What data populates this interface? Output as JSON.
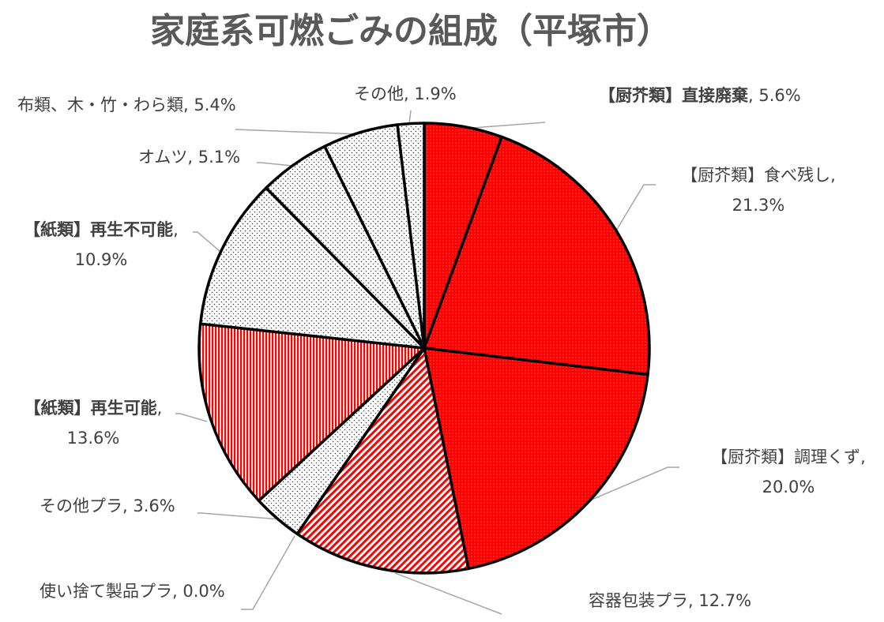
{
  "chart_data": {
    "type": "pie",
    "title": "家庭系可燃ごみの組成（平塚市）",
    "slices": [
      {
        "label_parts": [
          {
            "text": "【厨芥類】直接廃棄",
            "bold": true
          },
          {
            "text": ", 5.6%",
            "bold": false
          }
        ],
        "value": 5.6,
        "pattern": "red-dot"
      },
      {
        "label_parts": [
          {
            "text": "【厨芥類】食べ残し,",
            "bold": false
          }
        ],
        "label_parts_2": [
          {
            "text": "21.3%",
            "bold": false
          }
        ],
        "value": 21.3,
        "pattern": "red-dot"
      },
      {
        "label_parts": [
          {
            "text": "【厨芥類】調理くず,",
            "bold": false
          }
        ],
        "label_parts_2": [
          {
            "text": "20.0%",
            "bold": false
          }
        ],
        "value": 20.0,
        "pattern": "red-dot"
      },
      {
        "label_parts": [
          {
            "text": "容器包装プラ, 12.7%",
            "bold": false
          }
        ],
        "value": 12.7,
        "pattern": "red-diag"
      },
      {
        "label_parts": [
          {
            "text": "使い捨て製品プラ, 0.0%",
            "bold": false
          }
        ],
        "value": 0.0,
        "pattern": "red-diag"
      },
      {
        "label_parts": [
          {
            "text": "その他プラ, 3.6%",
            "bold": false
          }
        ],
        "value": 3.6,
        "pattern": "gray-dot"
      },
      {
        "label_parts": [
          {
            "text": "【紙類】再生可能",
            "bold": true
          },
          {
            "text": ",",
            "bold": false
          }
        ],
        "label_parts_2": [
          {
            "text": "13.6%",
            "bold": false
          }
        ],
        "value": 13.6,
        "pattern": "red-vert"
      },
      {
        "label_parts": [
          {
            "text": "【紙類】再生不可能",
            "bold": true
          },
          {
            "text": ",",
            "bold": false
          }
        ],
        "label_parts_2": [
          {
            "text": "10.9%",
            "bold": false
          }
        ],
        "value": 10.9,
        "pattern": "gray-dot"
      },
      {
        "label_parts": [
          {
            "text": "オムツ, 5.1%",
            "bold": false
          }
        ],
        "value": 5.1,
        "pattern": "gray-dot"
      },
      {
        "label_parts": [
          {
            "text": "布類、木・竹・わら類, 5.4%",
            "bold": false
          }
        ],
        "value": 5.4,
        "pattern": "gray-dot"
      },
      {
        "label_parts": [
          {
            "text": "その他, 1.9%",
            "bold": false
          }
        ],
        "value": 1.9,
        "pattern": "gray-dot"
      }
    ],
    "start_angle_deg": 0,
    "direction": "clockwise",
    "colors": {
      "red": "#ff0000",
      "gray": "#ededed",
      "outline": "#000000",
      "leader": "#a6a6a6",
      "title": "#595959",
      "label": "#404040"
    }
  }
}
